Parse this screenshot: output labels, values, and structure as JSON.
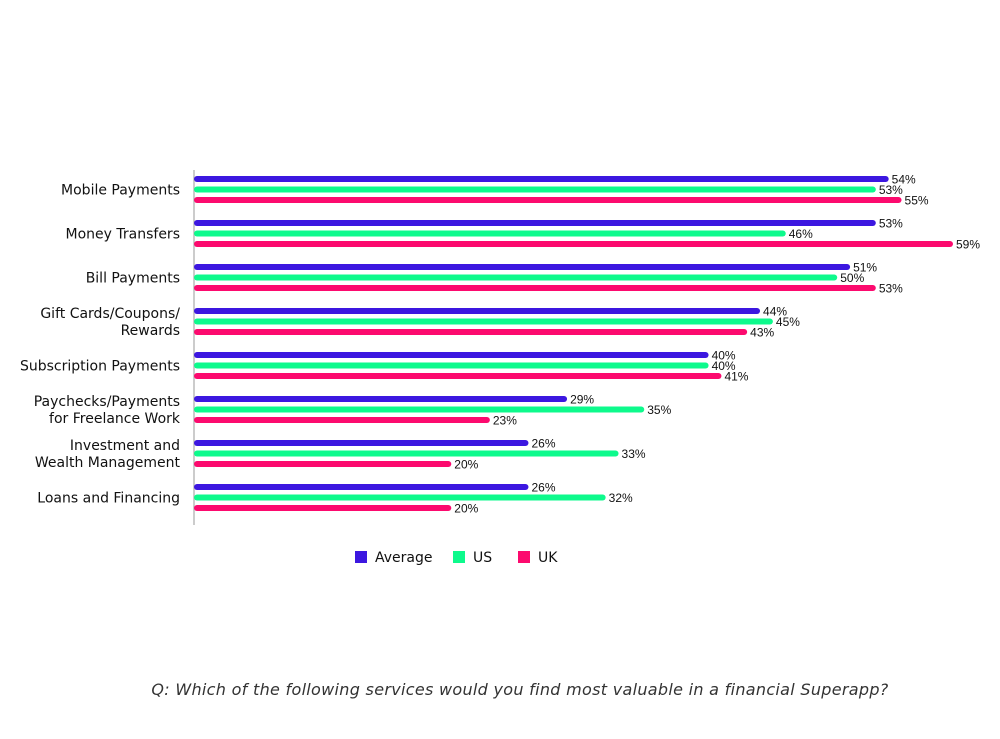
{
  "chart_data": {
    "type": "bar",
    "orientation": "horizontal",
    "title": "",
    "xlabel": "",
    "ylabel": "",
    "xlim": [
      0,
      60
    ],
    "grid": false,
    "legend_position": "bottom-center",
    "categories": [
      [
        "Mobile Payments"
      ],
      [
        "Money Transfers"
      ],
      [
        "Bill Payments"
      ],
      [
        "Gift Cards/Coupons/",
        "Rewards"
      ],
      [
        "Subscription Payments"
      ],
      [
        "Paychecks/Payments",
        "for Freelance Work"
      ],
      [
        "Investment and",
        "Wealth Management"
      ],
      [
        "Loans and Financing"
      ]
    ],
    "value_suffix": "%",
    "series": [
      {
        "name": "Average",
        "color": "#3c17e0",
        "values": [
          54,
          53,
          51,
          44,
          40,
          29,
          26,
          26
        ]
      },
      {
        "name": "US",
        "color": "#0dfa8c",
        "values": [
          53,
          46,
          50,
          45,
          40,
          35,
          33,
          32
        ]
      },
      {
        "name": "UK",
        "color": "#fc0a6e",
        "values": [
          55,
          59,
          53,
          43,
          41,
          23,
          20,
          20
        ]
      }
    ]
  },
  "question": "Q: Which of the following services would you find most valuable in a financial Superapp?"
}
